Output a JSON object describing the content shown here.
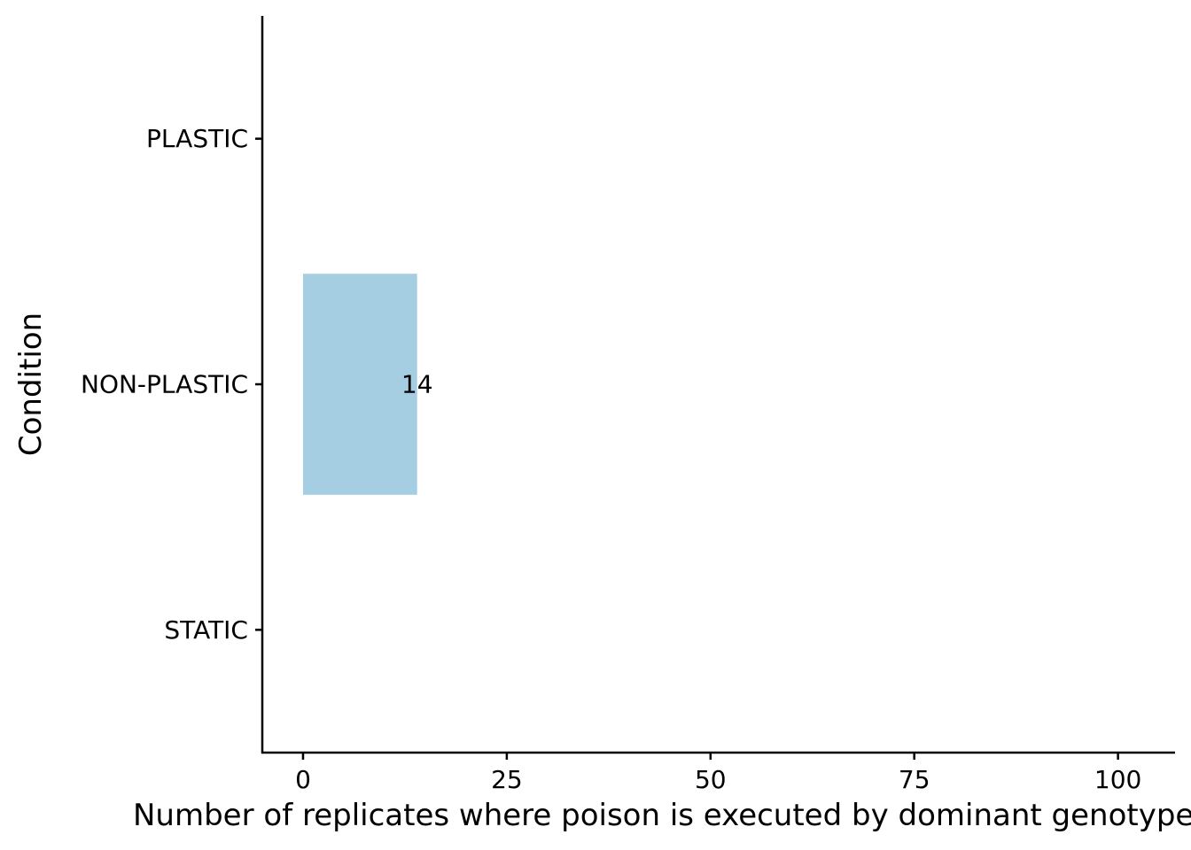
{
  "chart_data": {
    "type": "bar",
    "orientation": "horizontal",
    "categories": [
      "PLASTIC",
      "NON-PLASTIC",
      "STATIC"
    ],
    "values": [
      0,
      14,
      0
    ],
    "data_labels": [
      "",
      "14",
      ""
    ],
    "xlabel": "Number of replicates where poison is executed by dominant genotype",
    "ylabel": "Condition",
    "xlim": [
      -5,
      107
    ],
    "xticks": [
      0,
      25,
      50,
      75,
      100
    ],
    "xtick_labels": [
      "0",
      "25",
      "50",
      "75",
      "100"
    ],
    "grid": false,
    "bar_color": "#a6cee3"
  }
}
